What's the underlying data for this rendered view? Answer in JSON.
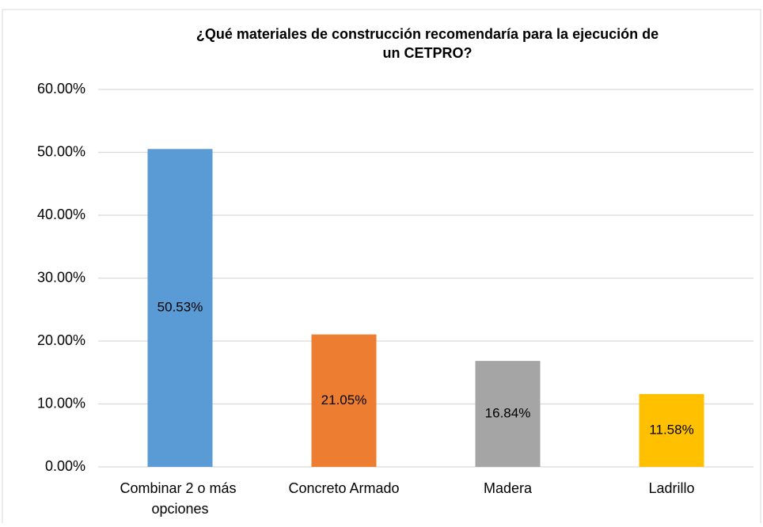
{
  "chart_data": {
    "type": "bar",
    "title": [
      "¿Qué materiales de construcción recomendaría para la ejecución de",
      "un CETPRO?"
    ],
    "categories": [
      "Combinar 2 o más opciones",
      "Concreto Armado",
      "Madera",
      "Ladrillo"
    ],
    "values": [
      50.53,
      21.05,
      16.84,
      11.58
    ],
    "value_labels": [
      "50.53%",
      "21.05%",
      "16.84%",
      "11.58%"
    ],
    "colors": [
      "#5b9bd5",
      "#ed7d31",
      "#a5a5a5",
      "#ffc000"
    ],
    "ylim": [
      0,
      60
    ],
    "yticks": [
      {
        "value": 0,
        "label": "0.00%"
      },
      {
        "value": 10,
        "label": "10.00%"
      },
      {
        "value": 20,
        "label": "20.00%"
      },
      {
        "value": 30,
        "label": "30.00%"
      },
      {
        "value": 40,
        "label": "40.00%"
      },
      {
        "value": 50,
        "label": "50.00%"
      },
      {
        "value": 60,
        "label": "60.00%"
      }
    ],
    "grid": true
  }
}
